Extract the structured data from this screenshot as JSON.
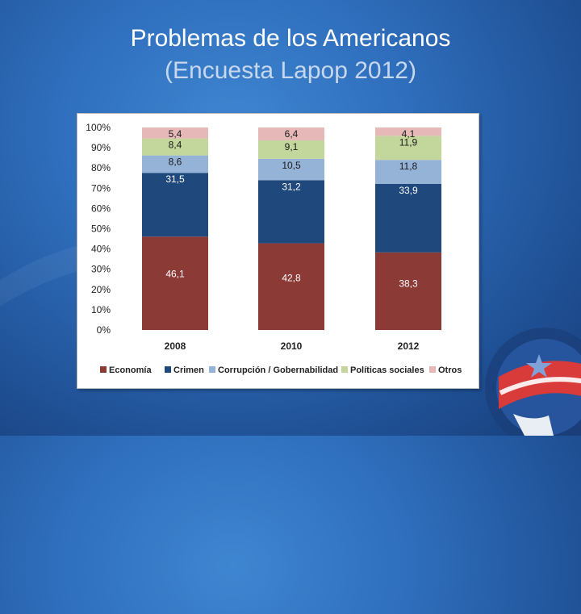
{
  "slide": {
    "title_line1": "Problemas de los Americanos",
    "title_line2": "(Encuesta Lapop 2012)"
  },
  "chart_data": {
    "type": "bar",
    "stacked": true,
    "categories": [
      "2008",
      "2010",
      "2012"
    ],
    "yticks": [
      "0%",
      "10%",
      "20%",
      "30%",
      "40%",
      "50%",
      "60%",
      "70%",
      "80%",
      "90%",
      "100%"
    ],
    "ylim": [
      0,
      100
    ],
    "series": [
      {
        "name": "Economía",
        "color": "#8b3a36",
        "values": [
          46.1,
          42.8,
          38.3
        ],
        "labels": [
          "46,1",
          "42,8",
          "38,3"
        ]
      },
      {
        "name": "Crimen",
        "color": "#1f497d",
        "values": [
          31.5,
          31.2,
          33.9
        ],
        "labels": [
          "31,5",
          "31,2",
          "33,9"
        ]
      },
      {
        "name": "Corrupción / Gobernabilidad",
        "color": "#95b3d7",
        "values": [
          8.6,
          10.5,
          11.8
        ],
        "labels": [
          "8,6",
          "10,5",
          "11,8"
        ]
      },
      {
        "name": "Políticas sociales",
        "color": "#c3d69b",
        "values": [
          8.4,
          9.1,
          11.9
        ],
        "labels": [
          "8,4",
          "9,1",
          "11,9"
        ]
      },
      {
        "name": "Otros",
        "color": "#e6b9b8",
        "values": [
          5.4,
          6.4,
          4.1
        ],
        "labels": [
          "5,4",
          "6,4",
          "4,1"
        ]
      }
    ],
    "legend_position": "bottom"
  }
}
